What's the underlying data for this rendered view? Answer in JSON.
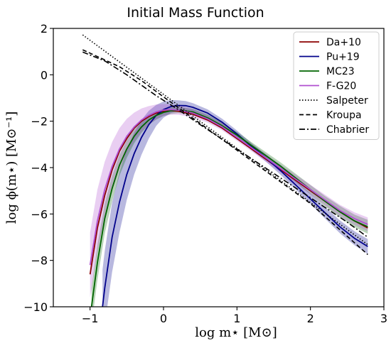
{
  "chart_data": {
    "type": "line",
    "title": "Initial Mass Function",
    "xlabel": "log m⋆ [M⊙]",
    "ylabel": "log ϕ(m⋆) [M⊙⁻¹]",
    "xlim": [
      -1.5,
      3
    ],
    "ylim": [
      -10,
      2
    ],
    "xticks": [
      -1,
      0,
      1,
      2,
      3
    ],
    "yticks": [
      -10,
      -8,
      -6,
      -4,
      -2,
      0,
      2
    ],
    "grid": false,
    "legend_position": "top-right",
    "series": [
      {
        "name": "Da+10",
        "color": "#8b0000",
        "style": "solid",
        "x": [
          -1.0,
          -0.9,
          -0.8,
          -0.7,
          -0.6,
          -0.5,
          -0.4,
          -0.3,
          -0.2,
          -0.1,
          0.0,
          0.1,
          0.2,
          0.4,
          0.6,
          0.8,
          1.0,
          1.2,
          1.4,
          1.6,
          1.8,
          2.0,
          2.2,
          2.4,
          2.6,
          2.78
        ],
        "y": [
          -8.6,
          -6.6,
          -5.2,
          -4.1,
          -3.3,
          -2.75,
          -2.3,
          -2.0,
          -1.8,
          -1.65,
          -1.58,
          -1.55,
          -1.57,
          -1.7,
          -1.95,
          -2.3,
          -2.75,
          -3.2,
          -3.65,
          -4.1,
          -4.55,
          -5.0,
          -5.45,
          -5.9,
          -6.3,
          -6.6
        ]
      },
      {
        "name": "Pu+19",
        "color": "#00008b",
        "style": "solid",
        "x": [
          -0.83,
          -0.8,
          -0.7,
          -0.6,
          -0.5,
          -0.4,
          -0.3,
          -0.2,
          -0.1,
          0.0,
          0.1,
          0.2,
          0.3,
          0.4,
          0.6,
          0.8,
          1.0,
          1.2,
          1.4,
          1.6,
          1.8,
          2.0,
          2.2,
          2.4,
          2.6,
          2.78
        ],
        "y": [
          -10.0,
          -9.2,
          -7.0,
          -5.5,
          -4.3,
          -3.4,
          -2.7,
          -2.15,
          -1.75,
          -1.5,
          -1.37,
          -1.32,
          -1.33,
          -1.4,
          -1.65,
          -2.05,
          -2.55,
          -3.1,
          -3.6,
          -4.15,
          -4.75,
          -5.35,
          -5.95,
          -6.55,
          -7.05,
          -7.4
        ],
        "band_width": [
          1.6,
          1.6,
          1.5,
          1.3,
          1.1,
          0.9,
          0.75,
          0.6,
          0.45,
          0.35,
          0.28,
          0.22,
          0.2,
          0.18,
          0.16,
          0.15,
          0.15,
          0.15,
          0.16,
          0.18,
          0.2,
          0.22,
          0.25,
          0.28,
          0.3,
          0.32
        ]
      },
      {
        "name": "MC23",
        "color": "#006400",
        "style": "solid",
        "x": [
          -0.98,
          -0.9,
          -0.8,
          -0.7,
          -0.6,
          -0.5,
          -0.4,
          -0.3,
          -0.2,
          -0.1,
          0.0,
          0.1,
          0.2,
          0.4,
          0.6,
          0.8,
          1.0,
          1.2,
          1.4,
          1.6,
          1.8,
          2.0,
          2.2,
          2.4,
          2.6,
          2.78
        ],
        "y": [
          -10.0,
          -8.1,
          -6.2,
          -4.9,
          -3.9,
          -3.2,
          -2.65,
          -2.25,
          -1.95,
          -1.75,
          -1.62,
          -1.55,
          -1.52,
          -1.6,
          -1.85,
          -2.2,
          -2.6,
          -3.05,
          -3.5,
          -3.95,
          -4.45,
          -4.95,
          -5.45,
          -5.9,
          -6.3,
          -6.55
        ],
        "band_width": [
          0.8,
          0.75,
          0.65,
          0.55,
          0.45,
          0.38,
          0.3,
          0.25,
          0.2,
          0.18,
          0.15,
          0.14,
          0.13,
          0.13,
          0.13,
          0.13,
          0.14,
          0.14,
          0.15,
          0.16,
          0.18,
          0.2,
          0.22,
          0.25,
          0.27,
          0.3
        ]
      },
      {
        "name": "F-G20",
        "color": "#b04fd0",
        "style": "solid",
        "x": [
          -1.0,
          -0.9,
          -0.8,
          -0.7,
          -0.6,
          -0.5,
          -0.4,
          -0.3,
          -0.2,
          -0.1,
          0.0,
          0.1,
          0.2,
          0.4,
          0.6,
          0.8,
          1.0,
          1.2,
          1.4,
          1.6,
          1.8,
          2.0,
          2.2,
          2.4,
          2.6,
          2.78
        ],
        "y": [
          -8.2,
          -6.3,
          -4.95,
          -3.95,
          -3.2,
          -2.65,
          -2.25,
          -1.95,
          -1.75,
          -1.6,
          -1.52,
          -1.5,
          -1.52,
          -1.65,
          -1.9,
          -2.25,
          -2.7,
          -3.15,
          -3.6,
          -4.05,
          -4.5,
          -4.95,
          -5.4,
          -5.85,
          -6.2,
          -6.45
        ],
        "band_width": [
          1.4,
          1.35,
          1.2,
          1.05,
          0.9,
          0.75,
          0.62,
          0.5,
          0.4,
          0.32,
          0.26,
          0.22,
          0.2,
          0.18,
          0.16,
          0.15,
          0.15,
          0.15,
          0.16,
          0.17,
          0.19,
          0.21,
          0.23,
          0.25,
          0.27,
          0.3
        ]
      },
      {
        "name": "Salpeter",
        "color": "#000000",
        "style": "dotted",
        "x": [
          -1.1,
          2.78
        ],
        "y": [
          1.72,
          -7.32
        ]
      },
      {
        "name": "Kroupa",
        "color": "#000000",
        "style": "dashed",
        "x": [
          -1.1,
          -0.6,
          -0.3,
          0.0,
          1.0,
          2.0,
          2.78
        ],
        "y": [
          1.08,
          0.35,
          -0.25,
          -0.95,
          -3.25,
          -5.55,
          -7.75
        ]
      },
      {
        "name": "Chabrier",
        "color": "#000000",
        "style": "dashdot",
        "x": [
          -1.1,
          -0.8,
          -0.5,
          -0.3,
          -0.1,
          0.0,
          0.2,
          0.5,
          1.0,
          1.5,
          2.0,
          2.5,
          2.78
        ],
        "y": [
          0.98,
          0.6,
          0.0,
          -0.45,
          -0.9,
          -1.1,
          -1.5,
          -2.15,
          -3.2,
          -4.25,
          -5.3,
          -6.35,
          -7.0
        ]
      }
    ]
  }
}
